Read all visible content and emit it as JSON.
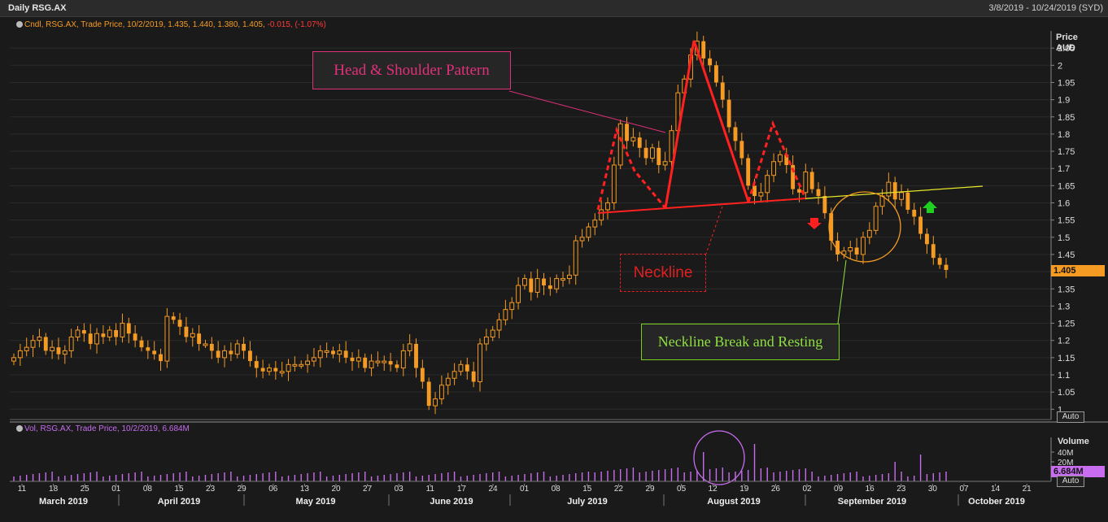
{
  "window": {
    "title": "Daily RSG.AX",
    "date_range": "3/8/2019 - 10/24/2019 (SYD)"
  },
  "legend": {
    "price": "Cndl, RSG.AX, Trade Price, 10/2/2019, 1.435, 1.440, 1.380, 1.405,",
    "price_change": "-0.015, (-1.07%)",
    "volume": "Vol, RSG.AX, Trade Price, 10/2/2019, 6.684M"
  },
  "axis": {
    "price_title": "Price",
    "price_unit": "AUD",
    "volume_title": "Volume",
    "auto_label": "Auto",
    "last_price_tag": "1.405",
    "last_volume_tag": "6.684M"
  },
  "annotations": {
    "head_shoulder": "Head & Shoulder Pattern",
    "neckline": "Neckline",
    "neckline_break": "Neckline Break and Resting"
  },
  "colors": {
    "candle": "#f59b23",
    "volume": "#c86cf0",
    "pattern": "#ff2020",
    "neckline": "#e6e62a",
    "circle_price": "#f59b23",
    "circle_volume": "#c86cf0",
    "arrow_down": "#ff2020",
    "arrow_up": "#20d020",
    "annotation_hs": "#e0307a",
    "annotation_break": "#8fe040"
  },
  "chart_data": {
    "type": "candlestick",
    "ylim": [
      0.97,
      2.1
    ],
    "y_ticks": [
      1,
      1.05,
      1.1,
      1.15,
      1.2,
      1.25,
      1.3,
      1.35,
      1.4,
      1.45,
      1.5,
      1.55,
      1.6,
      1.65,
      1.7,
      1.75,
      1.8,
      1.85,
      1.9,
      1.95,
      2,
      2.05
    ],
    "volume_ticks": [
      "20M",
      "40M"
    ],
    "x_tick_labels": [
      "11",
      "18",
      "25",
      "01",
      "08",
      "15",
      "23",
      "29",
      "06",
      "13",
      "20",
      "27",
      "03",
      "11",
      "17",
      "24",
      "01",
      "08",
      "15",
      "22",
      "29",
      "05",
      "12",
      "19",
      "26",
      "02",
      "09",
      "16",
      "23",
      "30",
      "07",
      "14",
      "21"
    ],
    "month_labels": [
      "March 2019",
      "April 2019",
      "May 2019",
      "June 2019",
      "July 2019",
      "August 2019",
      "September 2019",
      "October 2019"
    ],
    "close": [
      1.15,
      1.17,
      1.18,
      1.2,
      1.21,
      1.17,
      1.18,
      1.16,
      1.17,
      1.21,
      1.23,
      1.22,
      1.19,
      1.22,
      1.21,
      1.23,
      1.21,
      1.25,
      1.22,
      1.2,
      1.18,
      1.17,
      1.16,
      1.14,
      1.27,
      1.26,
      1.24,
      1.21,
      1.22,
      1.19,
      1.19,
      1.17,
      1.15,
      1.17,
      1.16,
      1.19,
      1.17,
      1.14,
      1.12,
      1.11,
      1.12,
      1.11,
      1.11,
      1.13,
      1.13,
      1.13,
      1.14,
      1.15,
      1.17,
      1.17,
      1.16,
      1.17,
      1.15,
      1.14,
      1.15,
      1.12,
      1.14,
      1.14,
      1.14,
      1.13,
      1.12,
      1.17,
      1.19,
      1.12,
      1.08,
      1.01,
      1.03,
      1.07,
      1.09,
      1.11,
      1.13,
      1.11,
      1.08,
      1.19,
      1.21,
      1.23,
      1.26,
      1.29,
      1.31,
      1.36,
      1.38,
      1.34,
      1.38,
      1.36,
      1.35,
      1.38,
      1.38,
      1.39,
      1.49,
      1.5,
      1.53,
      1.55,
      1.58,
      1.6,
      1.71,
      1.83,
      1.78,
      1.79,
      1.76,
      1.73,
      1.76,
      1.71,
      1.72,
      1.81,
      1.92,
      1.96,
      2.03,
      2.07,
      2.02,
      2.0,
      1.95,
      1.9,
      1.82,
      1.78,
      1.73,
      1.65,
      1.62,
      1.63,
      1.68,
      1.72,
      1.74,
      1.71,
      1.64,
      1.63,
      1.69,
      1.64,
      1.62,
      1.57,
      1.49,
      1.45,
      1.46,
      1.47,
      1.45,
      1.5,
      1.52,
      1.59,
      1.62,
      1.66,
      1.61,
      1.63,
      1.58,
      1.56,
      1.51,
      1.48,
      1.44,
      1.42,
      1.405
    ]
  }
}
